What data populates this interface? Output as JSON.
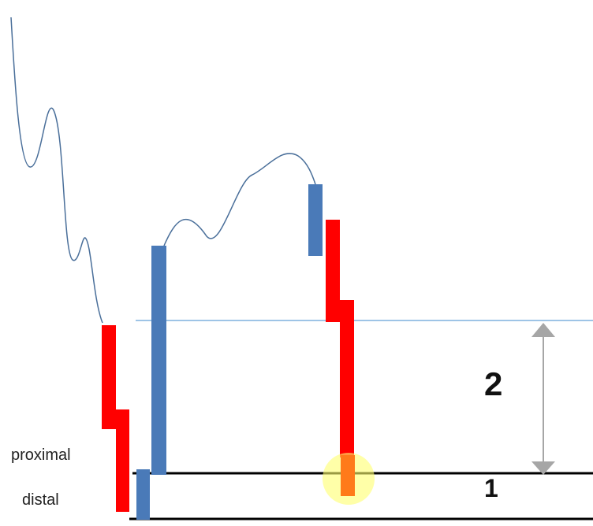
{
  "labels": {
    "proximal": "proximal",
    "distal": "distal",
    "zone_2": "2",
    "zone_1": "1"
  },
  "colors": {
    "bullish_candle": "#4a7ab8",
    "bearish_candle": "#ff0000",
    "highlight_candle": "#ff7a1a",
    "highlight_glow": "#ffff6e",
    "proximal_line": "#000000",
    "distal_line": "#000000",
    "reference_line": "#7fb0dd",
    "price_path": "#4a6f9a",
    "arrow": "#a6a6a6"
  },
  "icons": {
    "measure_arrow": "double-headed-arrow-icon",
    "highlight": "highlight-circle-icon"
  }
}
